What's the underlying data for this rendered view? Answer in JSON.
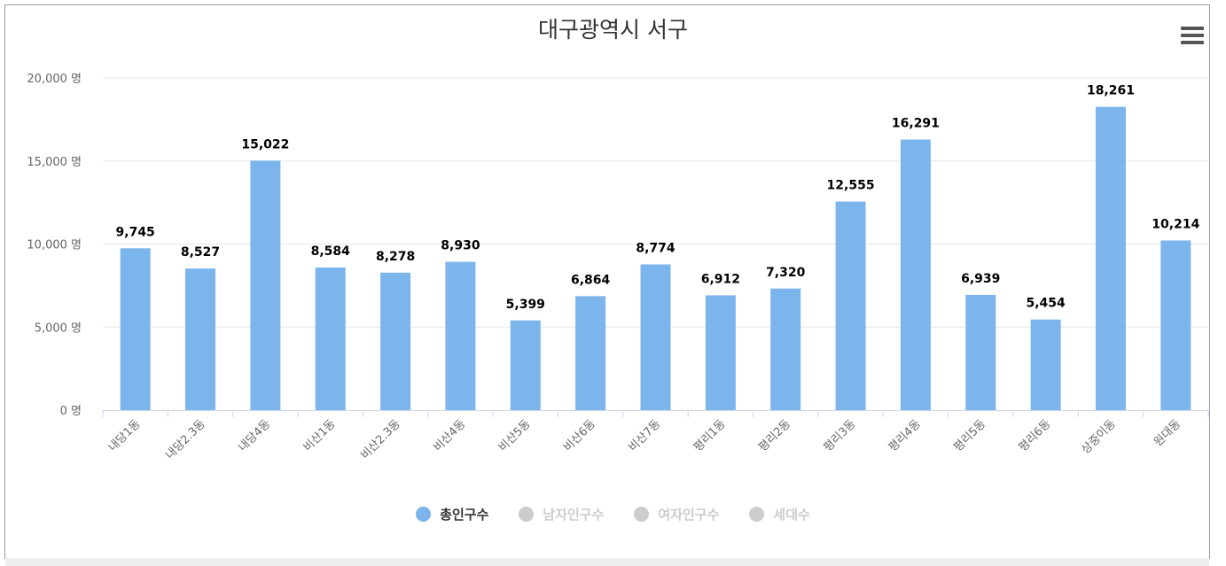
{
  "chart_data": {
    "type": "bar",
    "title": "대구광역시 서구",
    "categories": [
      "내당1동",
      "내당2.3동",
      "내당4동",
      "비산1동",
      "비산2.3동",
      "비산4동",
      "비산5동",
      "비산6동",
      "비산7동",
      "평리1동",
      "평리2동",
      "평리3동",
      "평리4동",
      "평리5동",
      "평리6동",
      "상중이동",
      "원대동"
    ],
    "series": [
      {
        "name": "총인구수",
        "values": [
          9745,
          8527,
          15022,
          8584,
          8278,
          8930,
          5399,
          6864,
          8774,
          6912,
          7320,
          12555,
          16291,
          6939,
          5454,
          18261,
          10214
        ],
        "visible": true,
        "color": "#7cb5ec"
      }
    ],
    "data_labels": [
      "9,745",
      "8,527",
      "15,022",
      "8,584",
      "8,278",
      "8,930",
      "5,399",
      "6,864",
      "8,774",
      "6,912",
      "7,320",
      "12,555",
      "16,291",
      "6,939",
      "5,454",
      "18,261",
      "10,214"
    ],
    "ylim": [
      0,
      20000
    ],
    "y_ticks": [
      0,
      5000,
      10000,
      15000,
      20000
    ],
    "y_tick_labels": [
      "0 명",
      "5,000 명",
      "10,000 명",
      "15,000 명",
      "20,000 명"
    ],
    "grid": true,
    "legend_position": "bottom-center",
    "legend": [
      {
        "label": "총인구수",
        "color": "#7cb5ec",
        "active": true
      },
      {
        "label": "남자인구수",
        "color": "#cccccc",
        "active": false
      },
      {
        "label": "여자인구수",
        "color": "#cccccc",
        "active": false
      },
      {
        "label": "세대수",
        "color": "#cccccc",
        "active": false
      }
    ]
  },
  "colors": {
    "bar": "#7cb5ec",
    "grid": "#e6e6e6",
    "axis": "#ccd6eb",
    "legend_active_text": "#333333",
    "legend_inactive_text": "#cccccc"
  },
  "icons": {
    "menu": "hamburger-menu-icon"
  }
}
